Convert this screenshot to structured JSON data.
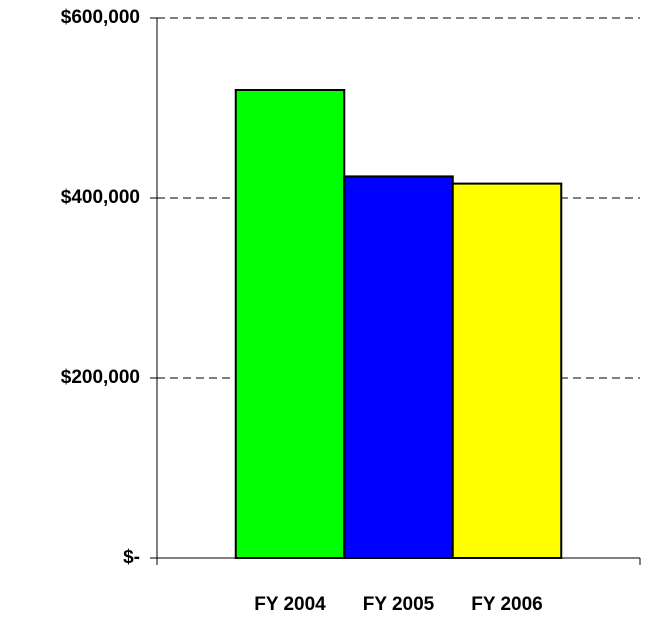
{
  "chart_data": {
    "type": "bar",
    "categories": [
      "FY 2004",
      "FY 2005",
      "FY 2006"
    ],
    "values": [
      520000,
      424000,
      416000
    ],
    "colors": [
      "#00ff00",
      "#0000ff",
      "#ffff00"
    ],
    "ylim": [
      0,
      600000
    ],
    "yticks": [
      {
        "value": 0,
        "label": "$-"
      },
      {
        "value": 200000,
        "label": "$200,000"
      },
      {
        "value": 400000,
        "label": "$400,000"
      },
      {
        "value": 600000,
        "label": "$600,000"
      }
    ],
    "grid": true
  }
}
